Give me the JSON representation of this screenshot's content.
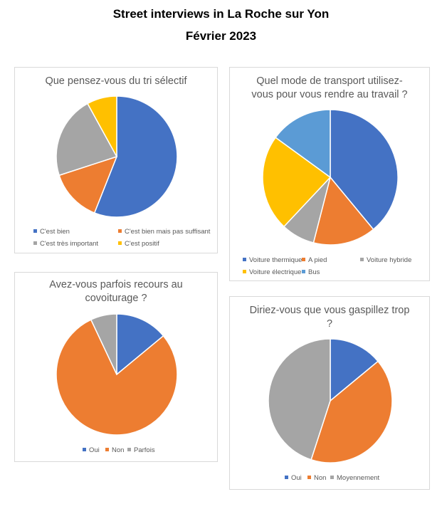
{
  "header": {
    "title": "Street interviews in La Roche sur Yon",
    "subtitle": "Février 2023"
  },
  "colors": {
    "blue": "#4472C4",
    "orange": "#ED7D31",
    "gray": "#A5A5A5",
    "yellow": "#FFC000",
    "lightblue": "#5B9BD5"
  },
  "chart_data": [
    {
      "type": "pie",
      "title": "Que pensez-vous du tri sélectif",
      "categories": [
        "C'est bien",
        "C'est bien mais pas suffisant",
        "C'est très important",
        "C'est positif"
      ],
      "values": [
        56,
        14,
        22,
        8
      ],
      "colors": [
        "#4472C4",
        "#ED7D31",
        "#A5A5A5",
        "#FFC000"
      ]
    },
    {
      "type": "pie",
      "title": "Quel mode de transport utilisez-vous pour vous rendre au travail ?",
      "title_lines": [
        "Quel mode de transport utilisez-",
        "vous pour vous rendre au travail ?"
      ],
      "categories": [
        "Voiture thermique",
        "A pied",
        "Voiture hybride",
        "Voiture électrique",
        "Bus"
      ],
      "values": [
        39,
        15,
        8,
        23,
        15
      ],
      "colors": [
        "#4472C4",
        "#ED7D31",
        "#A5A5A5",
        "#FFC000",
        "#5B9BD5"
      ]
    },
    {
      "type": "pie",
      "title": "Avez-vous parfois recours au covoiturage ?",
      "title_lines": [
        "Avez-vous parfois recours au",
        "covoiturage ?"
      ],
      "categories": [
        "Oui",
        "Non",
        "Parfois"
      ],
      "values": [
        14,
        79,
        7
      ],
      "colors": [
        "#4472C4",
        "#ED7D31",
        "#A5A5A5"
      ]
    },
    {
      "type": "pie",
      "title": "Diriez-vous que vous gaspillez trop ?",
      "title_lines": [
        "Diriez-vous que vous gaspillez trop",
        "?"
      ],
      "categories": [
        "Oui",
        "Non",
        "Moyennement"
      ],
      "values": [
        14,
        41,
        45
      ],
      "colors": [
        "#4472C4",
        "#ED7D31",
        "#A5A5A5"
      ]
    }
  ]
}
